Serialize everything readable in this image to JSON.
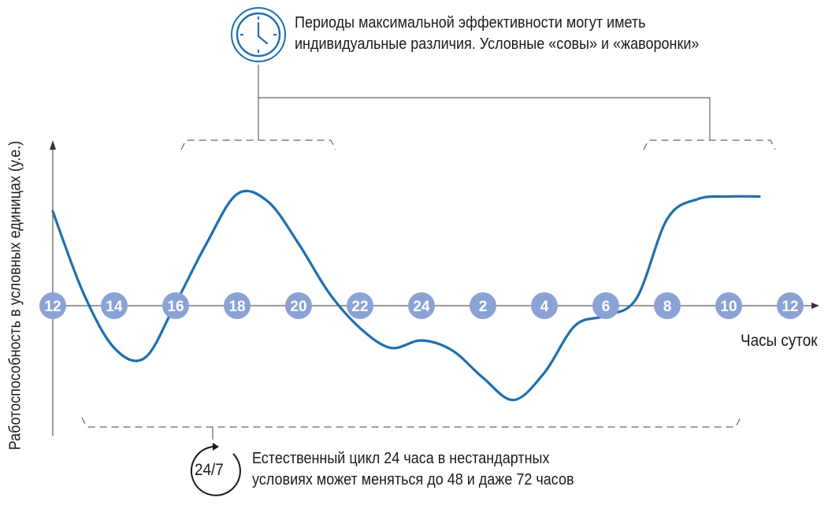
{
  "chart_data": {
    "type": "line",
    "title": "",
    "xlabel": "Часы суток",
    "ylabel": "Работоспособность в условных единицах (у.е.)",
    "tick_labels": [
      "12",
      "14",
      "16",
      "18",
      "20",
      "22",
      "24",
      "2",
      "4",
      "6",
      "8",
      "10",
      "12"
    ],
    "x": [
      12,
      13,
      14,
      15,
      16,
      17,
      18,
      19,
      20,
      21,
      22,
      23,
      24,
      25,
      26,
      27,
      28,
      29,
      30,
      31,
      32,
      33,
      34,
      35
    ],
    "series": [
      {
        "values": [
          3.8,
          0.5,
          -1.7,
          -2.1,
          0.1,
          2.5,
          4.5,
          4.2,
          2.5,
          0.5,
          -0.9,
          -1.7,
          -1.4,
          -1.8,
          -2.9,
          -3.8,
          -2.7,
          -0.8,
          -0.4,
          0.3,
          3.5,
          4.3,
          4.4,
          4.4
        ]
      }
    ],
    "ylim": [
      -5,
      5
    ],
    "grid": false,
    "line_color": "#1f6fae",
    "marker_color": "#8ba2d4"
  },
  "annotations": {
    "top_note": [
      "Периоды максимальной эффективности могут иметь",
      "индивидуальные различия. Условные «совы» и «жаворонки»"
    ],
    "bottom_note": [
      "Естественный цикл 24 часа в нестандартных",
      "условиях может меняться до 48 и даже 72 часов"
    ],
    "badge": "24/7",
    "clock_icon": "clock-icon",
    "cycle_icon": "cycle-arrow-icon"
  }
}
